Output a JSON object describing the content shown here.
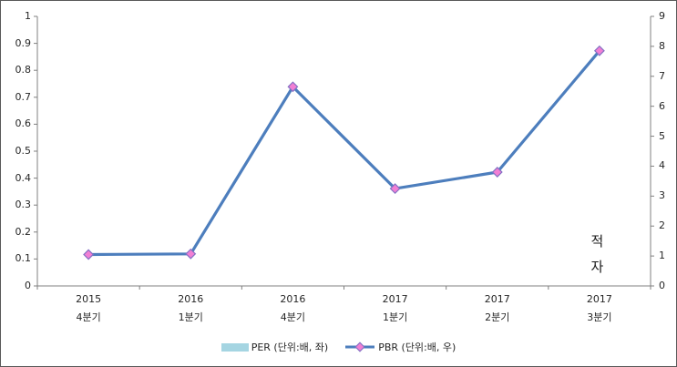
{
  "chart_data": {
    "type": "line",
    "title": "",
    "categories": [
      "2015 4분기",
      "2016 1분기",
      "2016 4분기",
      "2017 1분기",
      "2017 2분기",
      "2017 3분기"
    ],
    "category_line1": [
      "2015",
      "2016",
      "2016",
      "2017",
      "2017",
      "2017"
    ],
    "category_line2": [
      "4분기",
      "1분기",
      "4분기",
      "1분기",
      "2분기",
      "3분기"
    ],
    "series": [
      {
        "name": "PER (단위:배, 좌)",
        "type": "bar",
        "axis": "left",
        "color": "#A5D5E2",
        "values": [
          null,
          null,
          null,
          null,
          null,
          null
        ]
      },
      {
        "name": "PBR (단위:배, 우)",
        "type": "line",
        "axis": "right",
        "color": "#4D7EBD",
        "marker": "diamond",
        "marker_fill": "#F27FD4",
        "marker_stroke": "#8470C4",
        "values": [
          1.05,
          1.07,
          6.65,
          3.25,
          3.8,
          7.85
        ]
      }
    ],
    "left_axis": {
      "min": 0,
      "max": 1,
      "step": 0.1,
      "ticks": [
        "1",
        "0.9",
        "0.8",
        "0.7",
        "0.6",
        "0.5",
        "0.4",
        "0.3",
        "0.2",
        "0.1",
        "0"
      ]
    },
    "right_axis": {
      "min": 0,
      "max": 9,
      "step": 1,
      "ticks": [
        "9",
        "8",
        "7",
        "6",
        "5",
        "4",
        "3",
        "2",
        "1",
        "0"
      ]
    },
    "annotation": {
      "text": "적자",
      "lines": [
        "적",
        "자"
      ],
      "category": "2017 3분기"
    },
    "grid": false,
    "legend_position": "bottom-center"
  },
  "colors": {
    "axis": "#808080",
    "text": "#262626",
    "background": "#FFFFFF",
    "border": "#595959"
  }
}
